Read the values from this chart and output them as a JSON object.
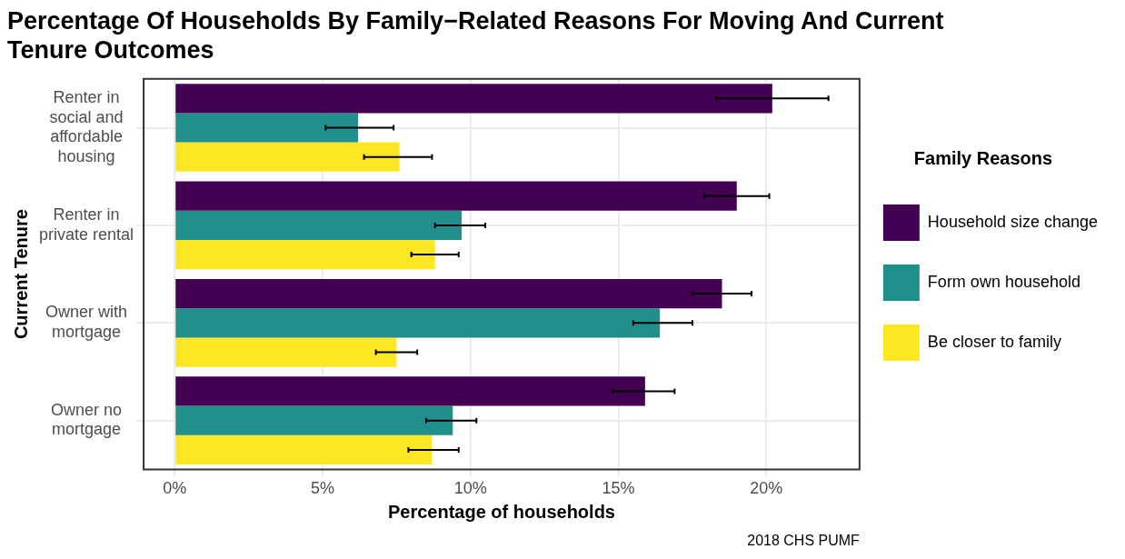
{
  "chart_data": {
    "type": "bar",
    "orientation": "horizontal",
    "title": "Percentage Of Households By Family−Related Reasons For Moving And Current Tenure Outcomes",
    "xlabel": "Percentage of households",
    "ylabel": "Current Tenure",
    "legend_title": "Family Reasons",
    "categories": [
      "Renter in social and affordable housing",
      "Renter in private rental",
      "Owner with mortgage",
      "Owner no mortgage"
    ],
    "series": [
      {
        "name": "Household size change",
        "color": "#440154",
        "values": [
          20.2,
          19.0,
          18.5,
          15.9
        ],
        "errors": [
          [
            18.3,
            22.1
          ],
          [
            17.9,
            20.1
          ],
          [
            17.5,
            19.5
          ],
          [
            14.8,
            16.9
          ]
        ]
      },
      {
        "name": "Form own household",
        "color": "#21908c",
        "values": [
          6.2,
          9.7,
          16.4,
          9.4
        ],
        "errors": [
          [
            5.1,
            7.4
          ],
          [
            8.8,
            10.5
          ],
          [
            15.5,
            17.5
          ],
          [
            8.5,
            10.2
          ]
        ]
      },
      {
        "name": "Be closer to family",
        "color": "#fde725",
        "values": [
          7.6,
          8.8,
          7.5,
          8.7
        ],
        "errors": [
          [
            6.4,
            8.7
          ],
          [
            8.0,
            9.6
          ],
          [
            6.8,
            8.2
          ],
          [
            7.9,
            9.6
          ]
        ]
      }
    ],
    "xlim": [
      -1.05,
      23.15
    ],
    "xticks": [
      {
        "value": 0,
        "label": "0%"
      },
      {
        "value": 5,
        "label": "5%"
      },
      {
        "value": 10,
        "label": "10%"
      },
      {
        "value": 15,
        "label": "15%"
      },
      {
        "value": 20,
        "label": "20%"
      }
    ],
    "grid": true,
    "legend": "right",
    "annotations": [
      "2018 CHS PUMF"
    ]
  }
}
